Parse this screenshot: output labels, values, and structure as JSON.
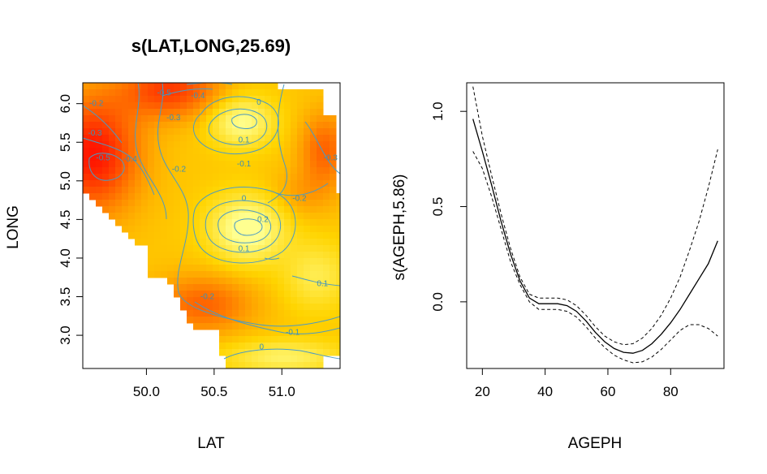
{
  "chart_data": [
    {
      "type": "heatmap",
      "title": "s(LAT,LONG,25.69)",
      "xlabel": "LAT",
      "ylabel": "LONG",
      "xlim": [
        49.53,
        51.43
      ],
      "ylim": [
        2.57,
        6.27
      ],
      "xticks": [
        "50.0",
        "50.5",
        "51.0"
      ],
      "xtick_values": [
        50.0,
        50.5,
        51.0
      ],
      "yticks": [
        "3.0",
        "3.5",
        "4.0",
        "4.5",
        "5.0",
        "5.5",
        "6.0"
      ],
      "ytick_values": [
        3.0,
        3.5,
        4.0,
        4.5,
        5.0,
        5.5,
        6.0
      ],
      "colormap": [
        "#ff0000",
        "#ff6a00",
        "#ffd400",
        "#ffff90"
      ],
      "color_range": [
        -0.55,
        0.25
      ],
      "peaks": [
        {
          "x": 50.7,
          "y": 5.78,
          "value": 0.2
        },
        {
          "x": 50.78,
          "y": 4.4,
          "value": 0.25
        }
      ],
      "contour_labels": [
        {
          "text": "-0.5",
          "x": 50.13,
          "y": 6.14
        },
        {
          "text": "-0.4",
          "x": 50.38,
          "y": 6.1
        },
        {
          "text": "-0.2",
          "x": 49.63,
          "y": 6.0
        },
        {
          "text": "-0.3",
          "x": 50.2,
          "y": 5.82
        },
        {
          "text": "-0.3",
          "x": 49.62,
          "y": 5.62
        },
        {
          "text": "-0.5",
          "x": 49.68,
          "y": 5.3
        },
        {
          "text": "-0.4",
          "x": 49.88,
          "y": 5.28
        },
        {
          "text": "-0.2",
          "x": 50.24,
          "y": 5.15
        },
        {
          "text": "0",
          "x": 50.83,
          "y": 6.02
        },
        {
          "text": "0.1",
          "x": 50.72,
          "y": 5.53
        },
        {
          "text": "-0.1",
          "x": 50.72,
          "y": 5.22
        },
        {
          "text": "-0.3",
          "x": 51.36,
          "y": 5.3
        },
        {
          "text": "-0.2",
          "x": 51.13,
          "y": 4.77
        },
        {
          "text": "0",
          "x": 50.72,
          "y": 4.77
        },
        {
          "text": "0.2",
          "x": 50.86,
          "y": 4.5
        },
        {
          "text": "0.1",
          "x": 50.72,
          "y": 4.12
        },
        {
          "text": "0.1",
          "x": 51.3,
          "y": 3.67
        },
        {
          "text": "-0.2",
          "x": 50.45,
          "y": 3.5
        },
        {
          "text": "-0.1",
          "x": 51.08,
          "y": 3.04
        },
        {
          "text": "0",
          "x": 50.85,
          "y": 2.85
        }
      ]
    },
    {
      "type": "line",
      "xlabel": "AGEPH",
      "ylabel": "s(AGEPH,5.86)",
      "xlim": [
        15,
        97
      ],
      "ylim": [
        -0.35,
        1.15
      ],
      "xticks": [
        "20",
        "40",
        "60",
        "80"
      ],
      "xtick_values": [
        20,
        40,
        60,
        80
      ],
      "yticks": [
        "0.0",
        "0.5",
        "1.0"
      ],
      "ytick_values": [
        0.0,
        0.5,
        1.0
      ],
      "x": [
        17,
        20,
        23,
        26,
        29,
        32,
        35,
        38,
        41,
        44,
        47,
        50,
        53,
        56,
        59,
        62,
        65,
        68,
        71,
        74,
        77,
        80,
        83,
        86,
        89,
        92,
        95
      ],
      "series": [
        {
          "style": "solid",
          "values": [
            0.96,
            0.79,
            0.61,
            0.42,
            0.25,
            0.11,
            0.02,
            -0.01,
            -0.01,
            -0.01,
            -0.02,
            -0.05,
            -0.1,
            -0.16,
            -0.21,
            -0.245,
            -0.265,
            -0.27,
            -0.255,
            -0.22,
            -0.17,
            -0.11,
            -0.04,
            0.04,
            0.12,
            0.2,
            0.32
          ]
        },
        {
          "style": "dashed",
          "values": [
            1.13,
            0.87,
            0.66,
            0.46,
            0.28,
            0.13,
            0.04,
            0.02,
            0.02,
            0.02,
            0.01,
            -0.02,
            -0.07,
            -0.13,
            -0.18,
            -0.21,
            -0.225,
            -0.22,
            -0.19,
            -0.14,
            -0.07,
            0.02,
            0.13,
            0.27,
            0.42,
            0.6,
            0.8
          ]
        },
        {
          "style": "dashed",
          "values": [
            0.79,
            0.7,
            0.55,
            0.38,
            0.21,
            0.09,
            0.0,
            -0.04,
            -0.04,
            -0.04,
            -0.05,
            -0.08,
            -0.13,
            -0.19,
            -0.24,
            -0.28,
            -0.305,
            -0.32,
            -0.315,
            -0.29,
            -0.25,
            -0.2,
            -0.15,
            -0.12,
            -0.12,
            -0.14,
            -0.18
          ]
        }
      ]
    }
  ]
}
